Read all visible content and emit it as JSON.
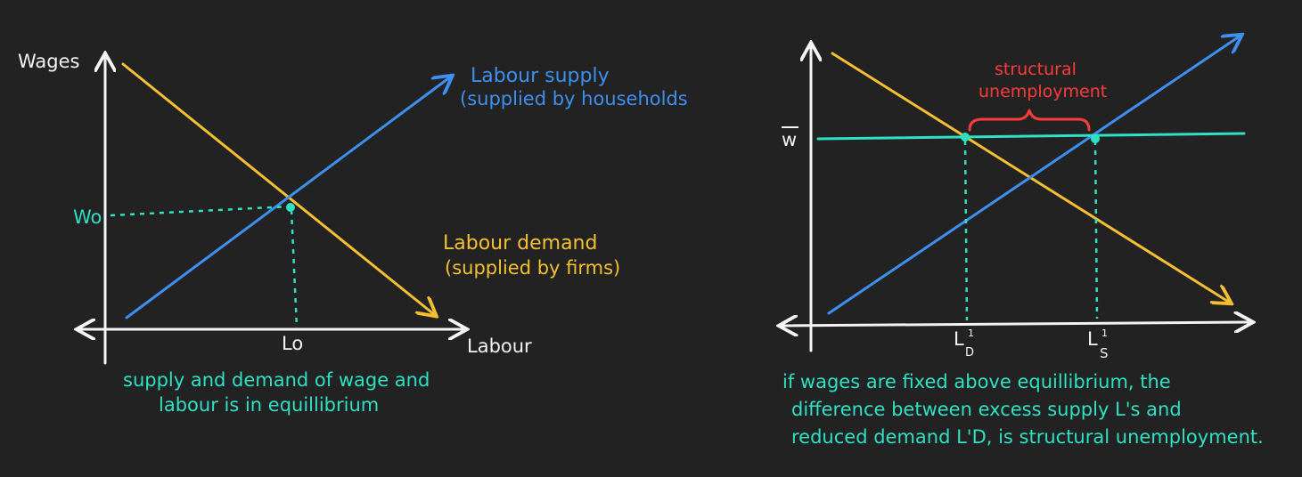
{
  "colors": {
    "background": "#222222",
    "axis": "#f4f4f4",
    "supply": "#3d8ff0",
    "demand": "#f5c030",
    "teal": "#2ee0c4",
    "red": "#ff3b3b"
  },
  "left_diagram": {
    "y_axis_label": "Wages",
    "x_axis_label": "Labour",
    "wage_label": "Wo",
    "labour_label": "Lo",
    "supply_label_line1": "Labour supply",
    "supply_label_line2": "(supplied by households",
    "demand_label_line1": "Labour demand",
    "demand_label_line2": "(supplied by firms)",
    "caption_line1": "supply and demand of wage and",
    "caption_line2": "labour is in equillibrium"
  },
  "right_diagram": {
    "wage_label": "w",
    "bracket_label_line1": "structural",
    "bracket_label_line2": "unemployment",
    "demand_point_label": "L",
    "demand_point_sub": "D",
    "demand_point_sup": "1",
    "supply_point_label": "L",
    "supply_point_sub": "S",
    "supply_point_sup": "1",
    "caption_line1": "if wages are fixed above equillibrium, the",
    "caption_line2": "difference between excess supply L's and",
    "caption_line3": "reduced demand L'D, is structural unemployment."
  }
}
